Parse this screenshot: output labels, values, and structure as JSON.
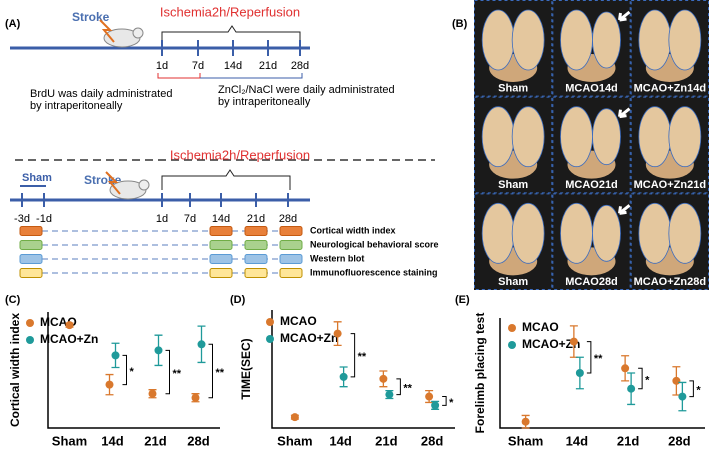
{
  "panel_a": {
    "label": "(A)",
    "stroke": "Stroke",
    "title": "Ischemia2h/Reperfusion",
    "timepoints": [
      "1d",
      "7d",
      "14d",
      "21d",
      "28d"
    ],
    "note_brdu": [
      "BrdU  was  daily administrated",
      "by intraperitoneally"
    ],
    "note_zn": [
      "ZnCl₂/NaCl were daily administrated",
      "by intraperitoneally"
    ],
    "sham": "Sham",
    "stroke2": "Stroke",
    "title2": "Ischemia2h/Reperfusion",
    "timepoints2": [
      "-3d",
      "-1d",
      "1d",
      "7d",
      "14d",
      "21d",
      "28d"
    ],
    "assays": [
      "Cortical width index",
      "Neurological behavioral score",
      "Western blot",
      "Immunofluorescence staining"
    ]
  },
  "panel_b": {
    "label": "(B)",
    "labels": [
      [
        "Sham",
        "MCAO14d",
        "MCAO+Zn14d"
      ],
      [
        "Sham",
        "MCAO21d",
        "MCAO+Zn21d"
      ],
      [
        "Sham",
        "MCAO28d",
        "MCAO+Zn28d"
      ]
    ]
  },
  "chart_data": [
    {
      "type": "dot",
      "panel_label": "(C)",
      "y_label": "Cortical width index",
      "categories": [
        "Sham",
        "14d",
        "21d",
        "28d"
      ],
      "ylim": [
        0,
        1.15
      ],
      "series": [
        {
          "name": "MCAO",
          "color": "#d9782d",
          "values": [
            1.02,
            0.43,
            0.34,
            0.3
          ],
          "errors": [
            0.02,
            0.1,
            0.04,
            0.04
          ]
        },
        {
          "name": "MCAO+Zn",
          "color": "#1f9a9a",
          "values": [
            null,
            0.72,
            0.77,
            0.83
          ],
          "errors": [
            null,
            0.12,
            0.15,
            0.18
          ]
        }
      ],
      "significance": [
        null,
        "*",
        "**",
        "**"
      ]
    },
    {
      "type": "dot",
      "panel_label": "(D)",
      "y_label": "TIME(SEC)",
      "categories": [
        "Sham",
        "14d",
        "21d",
        "28d"
      ],
      "ylim": [
        0,
        60
      ],
      "series": [
        {
          "name": "MCAO",
          "color": "#d9782d",
          "values": [
            5.5,
            48,
            25,
            16
          ],
          "errors": [
            1,
            6,
            4,
            3
          ]
        },
        {
          "name": "MCAO+Zn",
          "color": "#1f9a9a",
          "values": [
            null,
            26,
            17,
            11.5
          ],
          "errors": [
            null,
            5,
            2,
            2
          ]
        }
      ],
      "significance": [
        null,
        "**",
        "**",
        "*"
      ]
    },
    {
      "type": "dot",
      "panel_label": "(E)",
      "y_label": "Forelimb placing test",
      "categories": [
        "Sham",
        "14d",
        "21d",
        "28d"
      ],
      "ylim": [
        0,
        7
      ],
      "series": [
        {
          "name": "MCAO",
          "color": "#d9782d",
          "values": [
            0.4,
            5.5,
            3.8,
            3
          ],
          "errors": [
            0.4,
            1,
            0.8,
            0.9
          ]
        },
        {
          "name": "MCAO+Zn",
          "color": "#1f9a9a",
          "values": [
            null,
            3.5,
            2.5,
            2
          ],
          "errors": [
            null,
            1,
            1,
            0.9
          ]
        }
      ],
      "significance": [
        null,
        "**",
        "*",
        "*"
      ]
    }
  ]
}
